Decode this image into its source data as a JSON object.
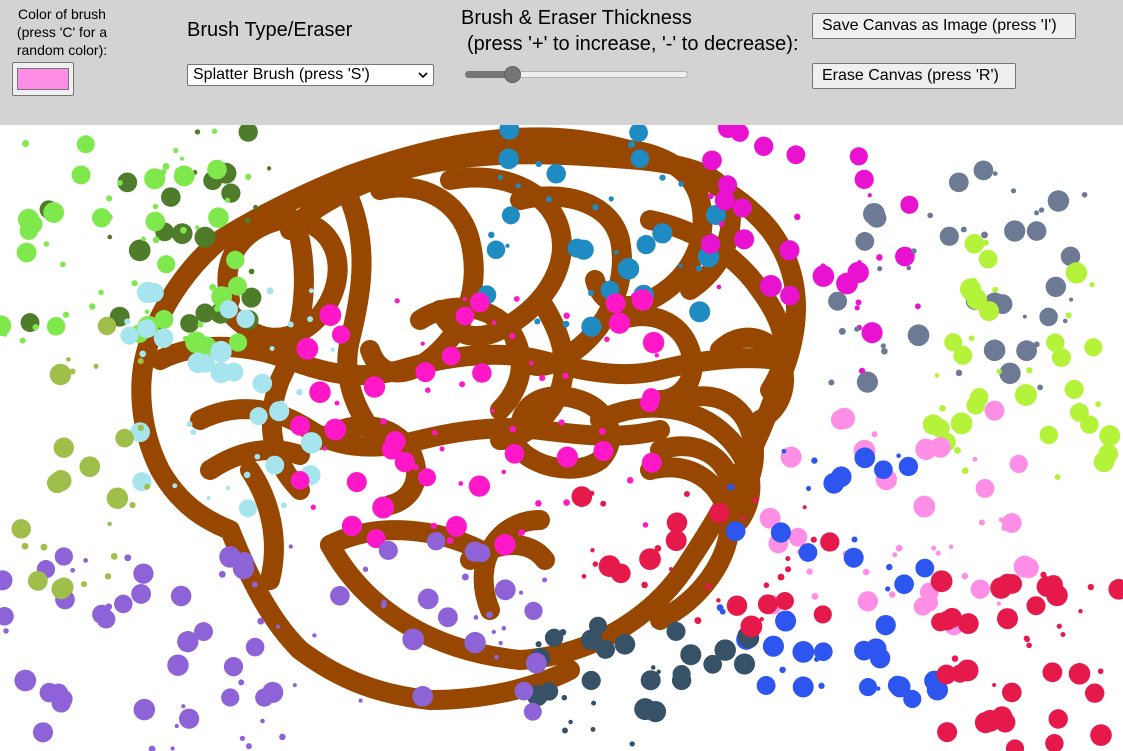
{
  "toolbar": {
    "color_label": "Color of brush\n(press 'C' for a\nrandom color):",
    "brush_color": "#ff8ee6",
    "brush_type_title": "Brush Type/Eraser",
    "brush_select_value": "Splatter Brush (press 'S')",
    "thickness_title": "Brush & Eraser Thickness",
    "thickness_hint": "(press '+' to increase, '-' to decrease):",
    "thickness_level": 0.19,
    "save_label": "Save Canvas as Image (press 'I')",
    "erase_label": "Erase Canvas (press 'R')"
  },
  "canvas": {
    "stroke_color": "#984700",
    "splatter_colors": [
      "#4e7c2a",
      "#7ee84c",
      "#a6e4ee",
      "#1e8bc3",
      "#e812d0",
      "#ff17c8",
      "#6c7a94",
      "#b5f23a",
      "#ff8ee6",
      "#2d55f0",
      "#8e63d8",
      "#375166",
      "#9fbe4a",
      "#e6194b"
    ]
  }
}
